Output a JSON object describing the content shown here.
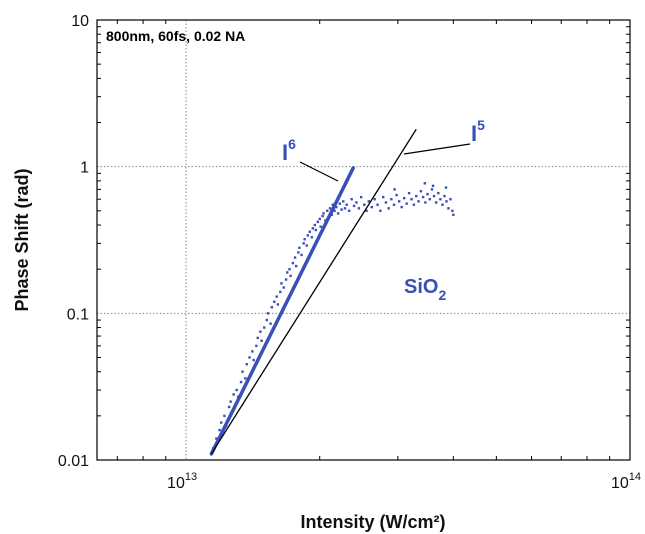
{
  "chart_data": {
    "type": "scatter",
    "title": "",
    "annotation": "800nm, 60fs, 0.02 NA",
    "xlabel": "Intensity (W/cm²)",
    "ylabel": "Phase Shift (rad)",
    "x_scale": "log",
    "y_scale": "log",
    "xlim": [
      6300000000000.0,
      100000000000000.0
    ],
    "ylim": [
      0.01,
      10
    ],
    "x_tick_labels": [
      {
        "value": 10000000000000.0,
        "base": "10",
        "exp": "13"
      },
      {
        "value": 100000000000000.0,
        "base": "10",
        "exp": "14"
      }
    ],
    "y_tick_labels": [
      {
        "value": 0.01,
        "label": "0.01"
      },
      {
        "value": 0.1,
        "label": "0.1"
      },
      {
        "value": 1,
        "label": "1"
      },
      {
        "value": 10,
        "label": "10"
      }
    ],
    "grid": true,
    "colors": {
      "data": "#3a4fb8",
      "fit_i6": "#3a4fb8",
      "fit_i5": "#000000",
      "grid": "#888888"
    },
    "material_label": {
      "base": "SiO",
      "sub": "2"
    },
    "fits": [
      {
        "name_base": "I",
        "name_exp": "6",
        "x": [
          11400000000000.0,
          23800000000000.0
        ],
        "y": [
          0.011,
          0.98
        ]
      },
      {
        "name_base": "I",
        "name_exp": "5",
        "x": [
          11400000000000.0,
          33000000000000.0
        ],
        "y": [
          0.011,
          1.8
        ]
      }
    ],
    "series": [
      {
        "name": "",
        "points": [
          [
            11500000000000.0,
            0.012
          ],
          [
            11700000000000.0,
            0.014
          ],
          [
            11900000000000.0,
            0.016
          ],
          [
            12000000000000.0,
            0.018
          ],
          [
            12200000000000.0,
            0.02
          ],
          [
            12300000000000.0,
            0.017
          ],
          [
            12500000000000.0,
            0.023
          ],
          [
            12600000000000.0,
            0.025
          ],
          [
            12800000000000.0,
            0.028
          ],
          [
            13000000000000.0,
            0.03
          ],
          [
            13100000000000.0,
            0.027
          ],
          [
            13300000000000.0,
            0.034
          ],
          [
            13400000000000.0,
            0.04
          ],
          [
            13600000000000.0,
            0.036
          ],
          [
            13700000000000.0,
            0.045
          ],
          [
            13900000000000.0,
            0.05
          ],
          [
            14100000000000.0,
            0.055
          ],
          [
            14200000000000.0,
            0.048
          ],
          [
            14400000000000.0,
            0.06
          ],
          [
            14500000000000.0,
            0.068
          ],
          [
            14700000000000.0,
            0.075
          ],
          [
            14800000000000.0,
            0.065
          ],
          [
            15000000000000.0,
            0.08
          ],
          [
            15200000000000.0,
            0.09
          ],
          [
            15300000000000.0,
            0.1
          ],
          [
            15500000000000.0,
            0.085
          ],
          [
            15600000000000.0,
            0.11
          ],
          [
            15800000000000.0,
            0.12
          ],
          [
            16000000000000.0,
            0.13
          ],
          [
            16100000000000.0,
            0.115
          ],
          [
            16300000000000.0,
            0.14
          ],
          [
            16400000000000.0,
            0.16
          ],
          [
            16600000000000.0,
            0.15
          ],
          [
            16800000000000.0,
            0.17
          ],
          [
            16900000000000.0,
            0.19
          ],
          [
            17100000000000.0,
            0.2
          ],
          [
            17200000000000.0,
            0.18
          ],
          [
            17400000000000.0,
            0.22
          ],
          [
            17600000000000.0,
            0.24
          ],
          [
            17700000000000.0,
            0.21
          ],
          [
            17900000000000.0,
            0.26
          ],
          [
            18000000000000.0,
            0.28
          ],
          [
            18200000000000.0,
            0.25
          ],
          [
            18400000000000.0,
            0.3
          ],
          [
            18500000000000.0,
            0.32
          ],
          [
            18700000000000.0,
            0.29
          ],
          [
            18800000000000.0,
            0.34
          ],
          [
            19000000000000.0,
            0.36
          ],
          [
            19200000000000.0,
            0.33
          ],
          [
            19300000000000.0,
            0.38
          ],
          [
            19500000000000.0,
            0.4
          ],
          [
            19600000000000.0,
            0.37
          ],
          [
            19800000000000.0,
            0.42
          ],
          [
            20000000000000.0,
            0.44
          ],
          [
            20100000000000.0,
            0.39
          ],
          [
            20300000000000.0,
            0.46
          ],
          [
            20400000000000.0,
            0.48
          ],
          [
            20600000000000.0,
            0.43
          ],
          [
            20800000000000.0,
            0.5
          ],
          [
            20900000000000.0,
            0.45
          ],
          [
            21100000000000.0,
            0.52
          ],
          [
            21300000000000.0,
            0.47
          ],
          [
            21400000000000.0,
            0.55
          ],
          [
            21600000000000.0,
            0.5
          ],
          [
            21800000000000.0,
            0.53
          ],
          [
            22000000000000.0,
            0.48
          ],
          [
            22200000000000.0,
            0.56
          ],
          [
            22400000000000.0,
            0.51
          ],
          [
            22600000000000.0,
            0.58
          ],
          [
            22800000000000.0,
            0.52
          ],
          [
            23000000000000.0,
            0.55
          ],
          [
            23300000000000.0,
            0.5
          ],
          [
            23600000000000.0,
            0.6
          ],
          [
            23900000000000.0,
            0.54
          ],
          [
            24200000000000.0,
            0.57
          ],
          [
            24500000000000.0,
            0.52
          ],
          [
            24800000000000.0,
            0.62
          ],
          [
            25200000000000.0,
            0.55
          ],
          [
            25500000000000.0,
            0.5
          ],
          [
            25800000000000.0,
            0.58
          ],
          [
            26200000000000.0,
            0.53
          ],
          [
            26600000000000.0,
            0.6
          ],
          [
            27000000000000.0,
            0.55
          ],
          [
            27400000000000.0,
            0.5
          ],
          [
            27800000000000.0,
            0.62
          ],
          [
            28200000000000.0,
            0.57
          ],
          [
            28600000000000.0,
            0.52
          ],
          [
            29000000000000.0,
            0.6
          ],
          [
            29400000000000.0,
            0.55
          ],
          [
            29800000000000.0,
            0.64
          ],
          [
            30200000000000.0,
            0.58
          ],
          [
            30600000000000.0,
            0.53
          ],
          [
            31000000000000.0,
            0.61
          ],
          [
            31400000000000.0,
            0.56
          ],
          [
            31800000000000.0,
            0.66
          ],
          [
            32200000000000.0,
            0.6
          ],
          [
            32600000000000.0,
            0.55
          ],
          [
            33000000000000.0,
            0.63
          ],
          [
            33400000000000.0,
            0.58
          ],
          [
            33800000000000.0,
            0.68
          ],
          [
            34200000000000.0,
            0.62
          ],
          [
            34600000000000.0,
            0.57
          ],
          [
            35000000000000.0,
            0.65
          ],
          [
            35400000000000.0,
            0.6
          ],
          [
            35800000000000.0,
            0.7
          ],
          [
            36200000000000.0,
            0.63
          ],
          [
            36600000000000.0,
            0.57
          ],
          [
            37000000000000.0,
            0.66
          ],
          [
            37400000000000.0,
            0.6
          ],
          [
            37800000000000.0,
            0.55
          ],
          [
            38200000000000.0,
            0.63
          ],
          [
            38600000000000.0,
            0.58
          ],
          [
            39000000000000.0,
            0.52
          ],
          [
            39400000000000.0,
            0.6
          ],
          [
            39800000000000.0,
            0.5
          ],
          [
            40000000000000.0,
            0.47
          ],
          [
            38500000000000.0,
            0.72
          ],
          [
            36000000000000.0,
            0.74
          ],
          [
            34500000000000.0,
            0.77
          ],
          [
            29500000000000.0,
            0.7
          ]
        ]
      }
    ]
  }
}
